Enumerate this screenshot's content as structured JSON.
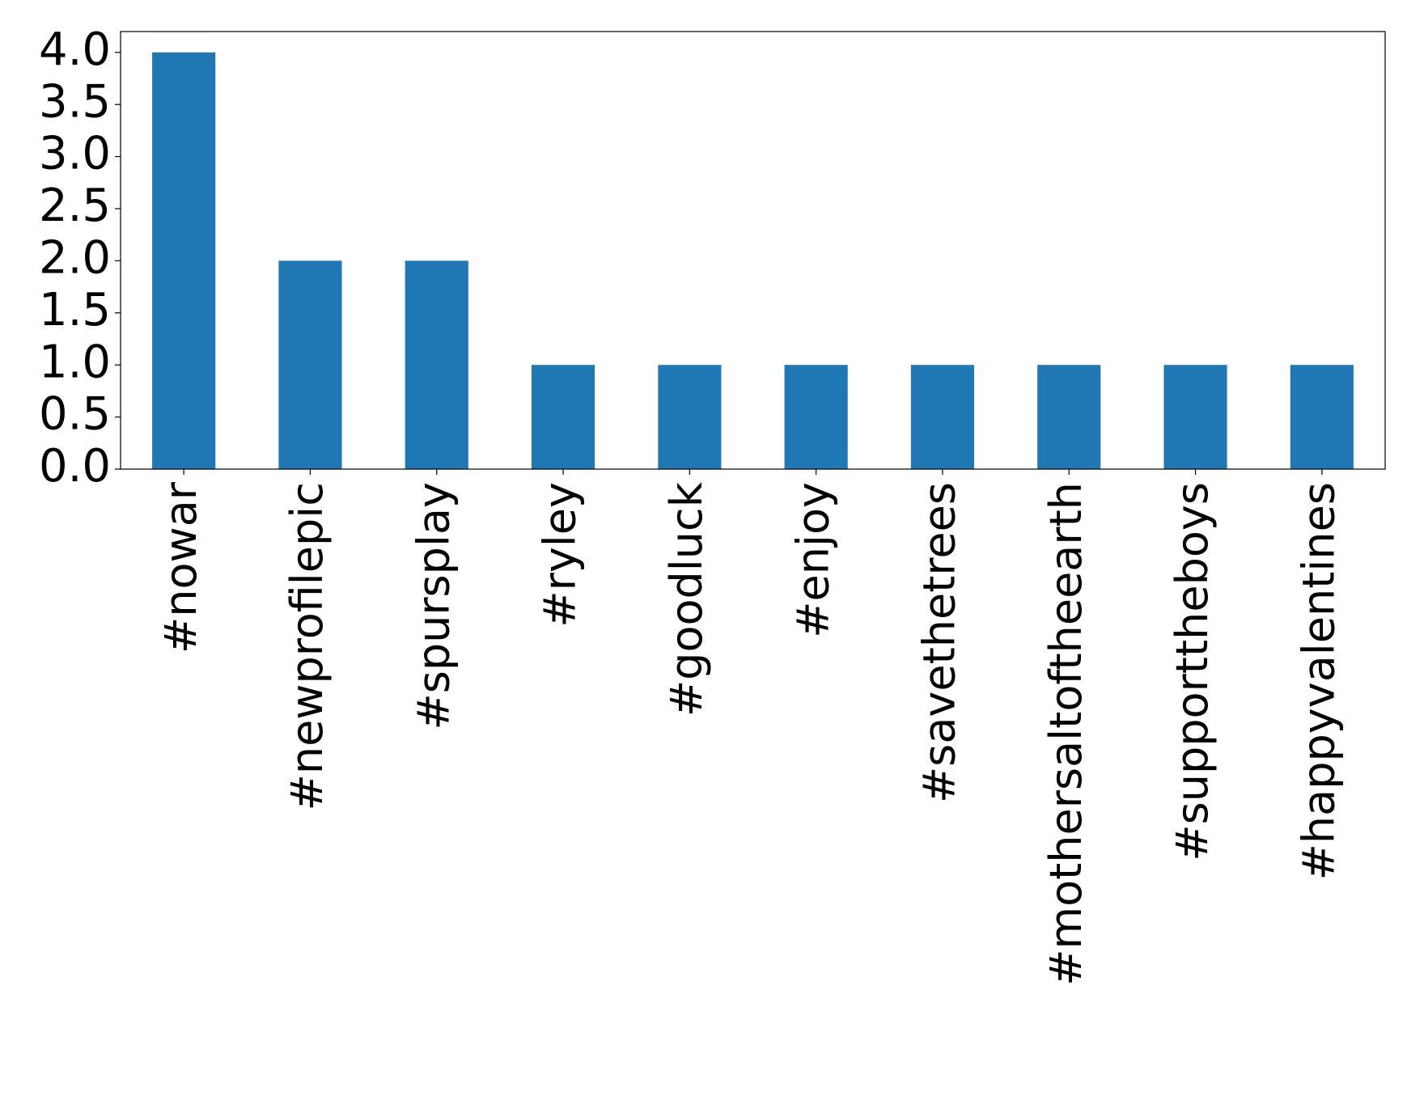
{
  "chart_data": {
    "type": "bar",
    "categories": [
      "#nowar",
      "#newprofilepic",
      "#spursplay",
      "#ryley",
      "#goodluck",
      "#enjoy",
      "#savethetrees",
      "#mothersaltoftheearth",
      "#supporttheboys",
      "#happyvalentines"
    ],
    "values": [
      4,
      2,
      2,
      1,
      1,
      1,
      1,
      1,
      1,
      1
    ],
    "color": "#1f77b4",
    "ylim": [
      0,
      4.2
    ],
    "yticks": [
      {
        "value": 0,
        "label": "0.0"
      },
      0.5,
      {
        "value": 1,
        "label": "1.0"
      },
      1.5,
      {
        "value": 2,
        "label": "2.0"
      },
      2.5,
      {
        "value": 3,
        "label": "3.0"
      },
      3.5,
      {
        "value": 4,
        "label": "4.0"
      }
    ],
    "grid": false
  }
}
